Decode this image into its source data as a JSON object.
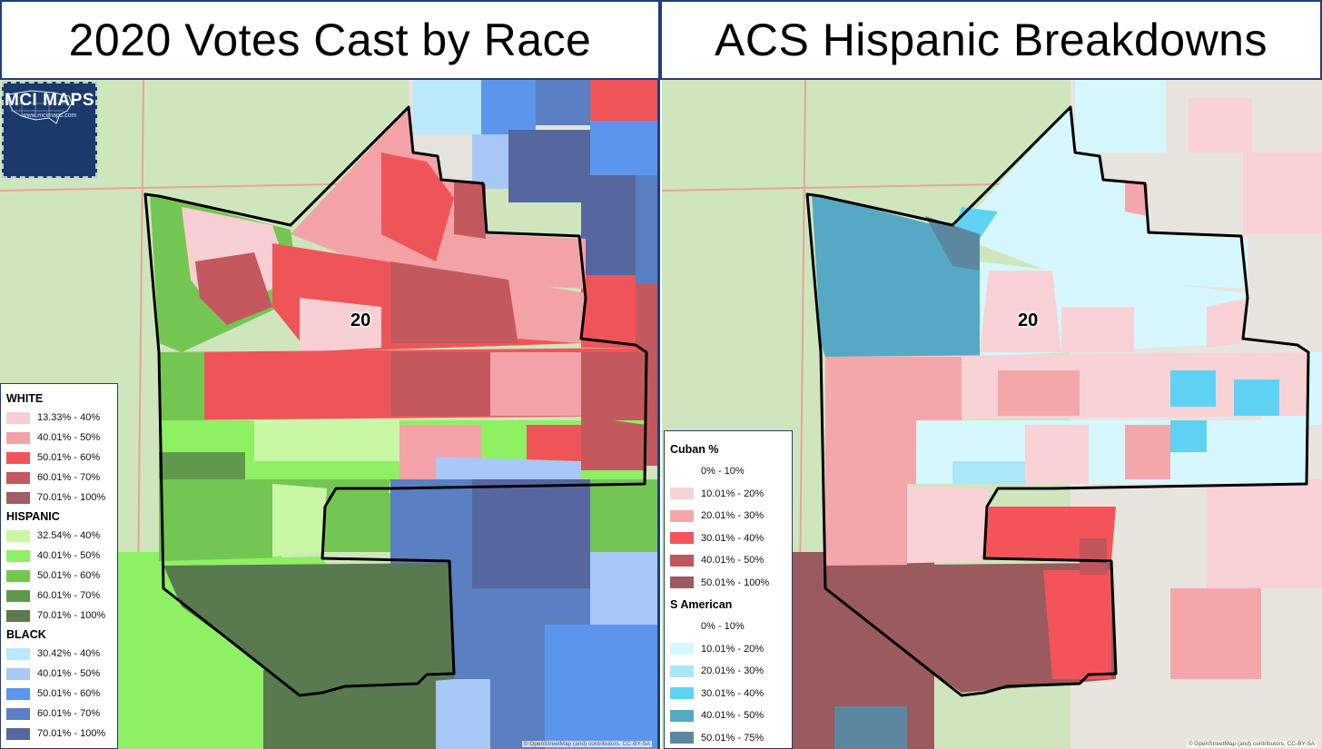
{
  "titles": {
    "left": "2020 Votes Cast by Race",
    "right": "ACS Hispanic Breakdowns"
  },
  "district_label": "20",
  "logo": {
    "text": "MCI MAPS",
    "url": "www.mcimaps.com"
  },
  "attribution": "© OpenStreetMap (and) contributors, CC-BY-SA",
  "legend_left": {
    "groups": [
      {
        "title": "WHITE",
        "items": [
          {
            "label": "13.33% - 40%",
            "color": "#f7cfd2"
          },
          {
            "label": "40.01% - 50%",
            "color": "#f3a3a8"
          },
          {
            "label": "50.01% - 60%",
            "color": "#ef5558"
          },
          {
            "label": "60.01% - 70%",
            "color": "#c4585f"
          },
          {
            "label": "70.01% - 100%",
            "color": "#a05e62"
          }
        ]
      },
      {
        "title": "HISPANIC",
        "items": [
          {
            "label": "32.54% - 40%",
            "color": "#c9f7a4"
          },
          {
            "label": "40.01% - 50%",
            "color": "#8ef063"
          },
          {
            "label": "50.01% - 60%",
            "color": "#74c653"
          },
          {
            "label": "60.01% - 70%",
            "color": "#5f9a4c"
          },
          {
            "label": "70.01% - 100%",
            "color": "#597a4f"
          }
        ]
      },
      {
        "title": "BLACK",
        "items": [
          {
            "label": "30.42% - 40%",
            "color": "#b9e9fb"
          },
          {
            "label": "40.01% - 50%",
            "color": "#a8c8f5"
          },
          {
            "label": "50.01% - 60%",
            "color": "#5c96ec"
          },
          {
            "label": "60.01% - 70%",
            "color": "#5a7fc2"
          },
          {
            "label": "70.01% - 100%",
            "color": "#55679e"
          }
        ]
      }
    ]
  },
  "legend_right": {
    "groups": [
      {
        "title": "Cuban  %",
        "items": [
          {
            "label": "0% - 10%",
            "color": "#ffffff"
          },
          {
            "label": "10.01% - 20%",
            "color": "#f9d2d6"
          },
          {
            "label": "20.01% - 30%",
            "color": "#f5a6ab"
          },
          {
            "label": "30.01% - 40%",
            "color": "#f2545a"
          },
          {
            "label": "40.01% - 50%",
            "color": "#c2545b"
          },
          {
            "label": "50.01% - 100%",
            "color": "#9a5a5e"
          }
        ]
      },
      {
        "title": "S American",
        "items": [
          {
            "label": "0% - 10%",
            "color": "#ffffff"
          },
          {
            "label": "10.01% - 20%",
            "color": "#d5f7fd"
          },
          {
            "label": "20.01% - 30%",
            "color": "#a9e7f9"
          },
          {
            "label": "30.01% - 40%",
            "color": "#5fd2f4"
          },
          {
            "label": "40.01% - 50%",
            "color": "#57a8c4"
          },
          {
            "label": "50.01% - 75%",
            "color": "#5b88a0"
          }
        ]
      }
    ]
  }
}
